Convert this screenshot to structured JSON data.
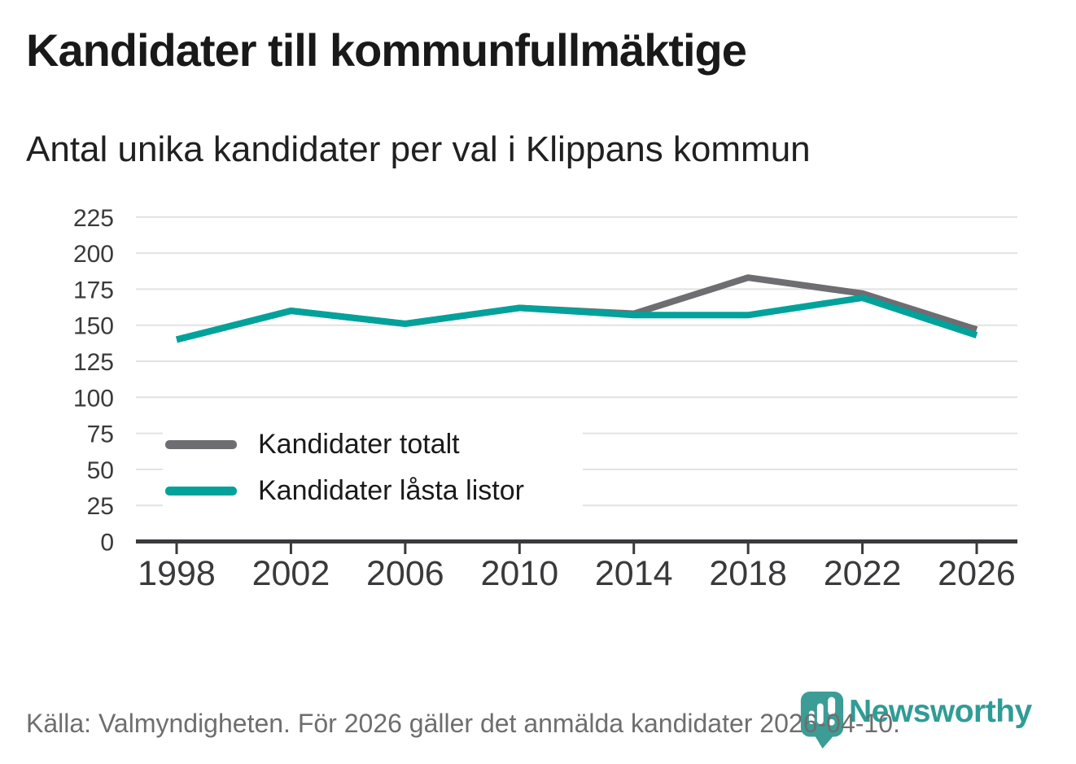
{
  "header": {
    "title": "Kandidater till kommunfullmäktige",
    "subtitle": "Antal unika kandidater per val i Klippans kommun"
  },
  "chart_data": {
    "type": "line",
    "title": "Kandidater till kommunfullmäktige",
    "subtitle": "Antal unika kandidater per val i Klippans kommun",
    "x": [
      1998,
      2002,
      2006,
      2010,
      2014,
      2018,
      2022,
      2026
    ],
    "xlabel": "",
    "ylabel": "",
    "ylim": [
      0,
      225
    ],
    "ytick_step": 25,
    "grid": true,
    "legend_position": "inside bottom-left",
    "series": [
      {
        "name": "Kandidater totalt",
        "color": "#6e6d71",
        "values": [
          140,
          160,
          151,
          162,
          158,
          183,
          172,
          147
        ]
      },
      {
        "name": "Kandidater låsta listor",
        "color": "#00a29b",
        "values": [
          140,
          160,
          151,
          162,
          157,
          157,
          169,
          143
        ]
      }
    ],
    "source": "Källa: Valmyndigheten. För 2026 gäller det anmälda kandidater 2026-04-10."
  },
  "footer": {
    "source_text": "Källa: Valmyndigheten. För 2026 gäller det anmälda kandidater 2026-04-10."
  },
  "logo": {
    "brand": "Newsworthy",
    "icon": "newsworthy-pin-icon",
    "accent_color": "#2f9c95",
    "pin_color": "#3b9d96"
  },
  "colors": {
    "axis": "#3a3a3c",
    "grid": "#e2e2e2",
    "footer_text": "#6e6e6e",
    "title_text": "#191919"
  }
}
